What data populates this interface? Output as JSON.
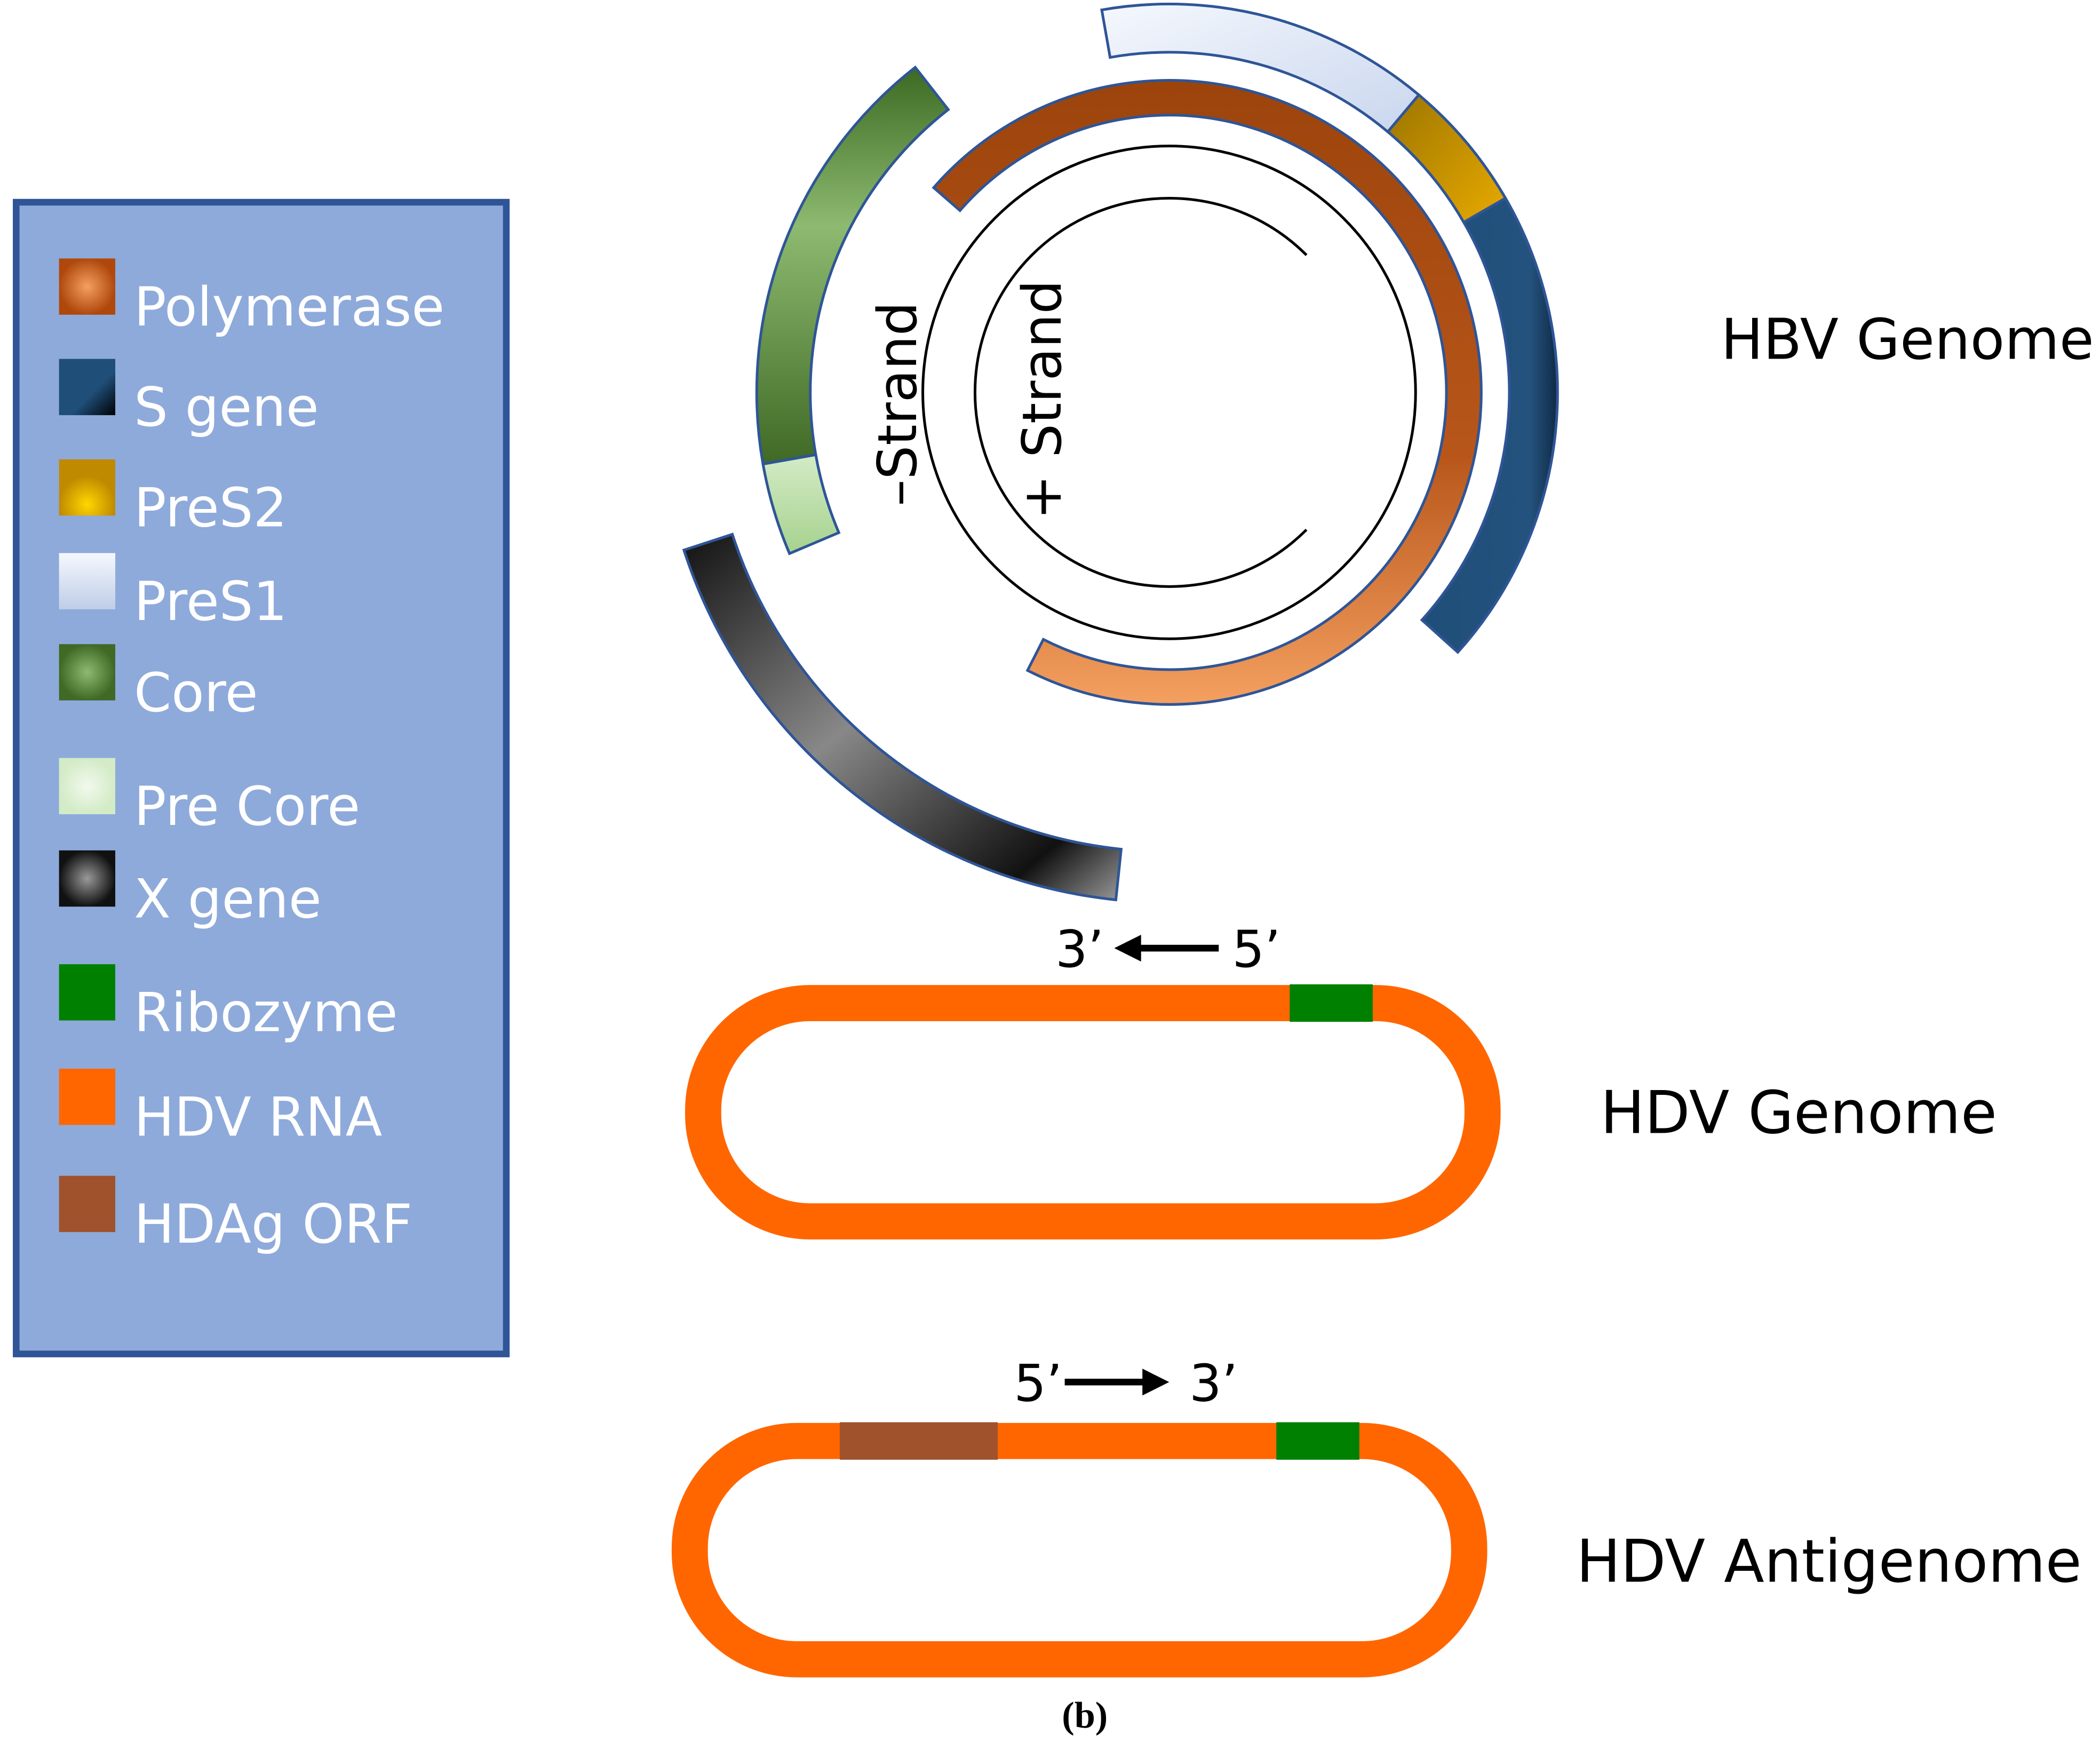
{
  "legend": {
    "items": [
      {
        "label": "Polymerase",
        "color": "#c55a11"
      },
      {
        "label": "S gene",
        "color": "#1f4e79"
      },
      {
        "label": "PreS2",
        "color": "#e0a800"
      },
      {
        "label": "PreS1",
        "color": "#dae3f3"
      },
      {
        "label": "Core",
        "color": "#548235"
      },
      {
        "label": "Pre Core",
        "color": "#e2f0d9"
      },
      {
        "label": "X gene",
        "color": "#404040"
      },
      {
        "label": "Ribozyme",
        "color": "#008000"
      },
      {
        "label": "HDV RNA",
        "color": "#ff6600"
      },
      {
        "label": "HDAg ORF",
        "color": "#a0522d"
      }
    ],
    "background": "#8eaadb",
    "border": "#2f5597"
  },
  "hbv": {
    "title": "HBV Genome",
    "minus_strand": "–Strand",
    "plus_strand": "+ Strand"
  },
  "hdv_genome": {
    "title": "HDV Genome",
    "left_end": "3’",
    "right_end": "5’"
  },
  "hdv_antigenome": {
    "title": "HDV Antigenome",
    "left_end": "5’",
    "right_end": "3’"
  },
  "caption": "(b)"
}
